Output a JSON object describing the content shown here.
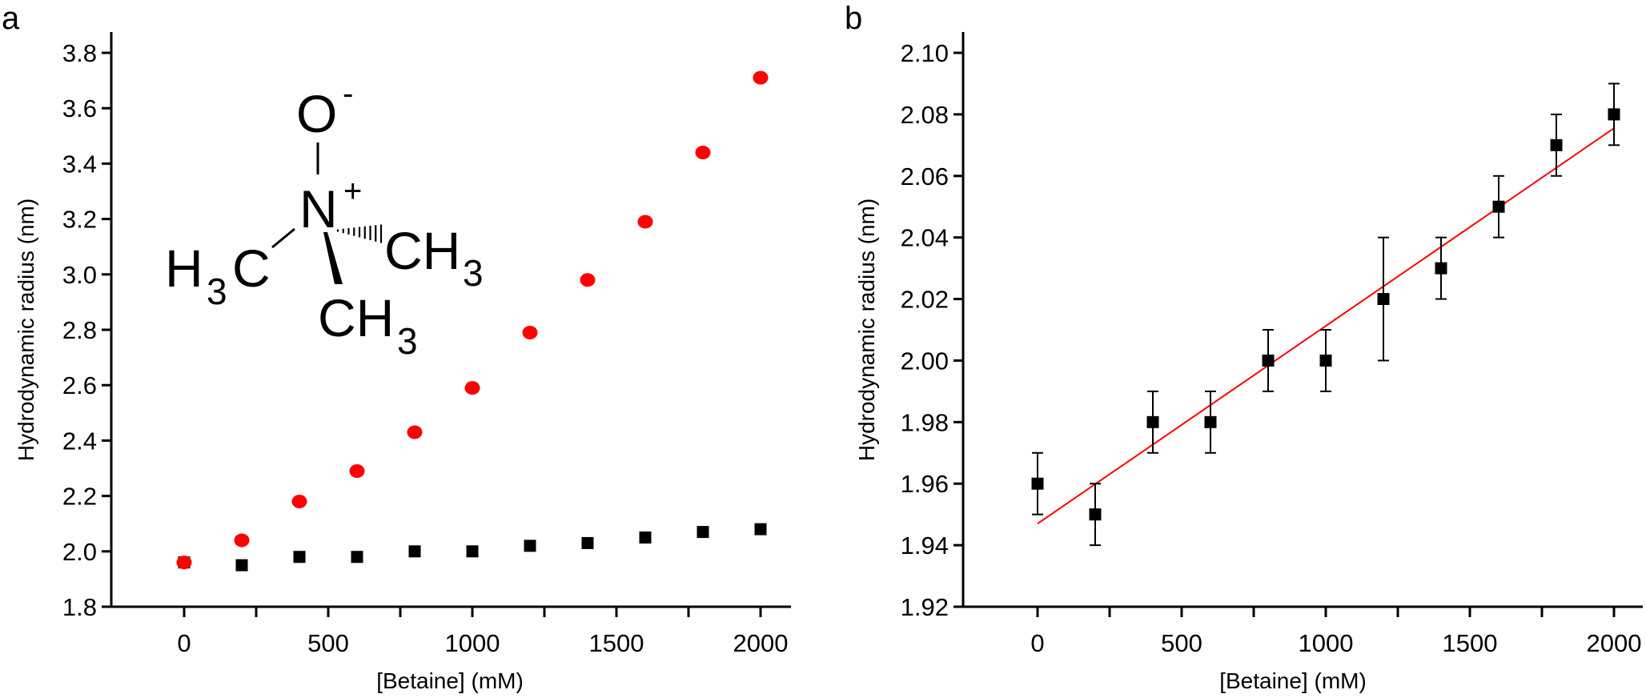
{
  "figure": {
    "panel_labels": [
      "a",
      "b"
    ],
    "molecule": {
      "name": "trimethylamine N-oxide",
      "oxygen": "O",
      "oxygen_charge": "-",
      "nitrogen": "N",
      "nitrogen_charge": "+",
      "left_group_H": "H",
      "left_group_sub": "3",
      "left_group_C": "C",
      "right_group": "CH",
      "right_group_sub": "3",
      "bottom_group": "CH",
      "bottom_group_sub": "3"
    }
  },
  "chart_data": [
    {
      "panel": "a",
      "type": "scatter",
      "title": "",
      "xlabel": "[Betaine] (mM)",
      "ylabel": "Hydrodynamic radius (nm)",
      "xlim": [
        -250,
        2080
      ],
      "ylim": [
        1.8,
        3.87
      ],
      "xticks": [
        0,
        500,
        1000,
        1500,
        2000
      ],
      "xminor_ticks": [
        250,
        750,
        1250,
        1750
      ],
      "yticks": [
        1.8,
        2.0,
        2.2,
        2.4,
        2.6,
        2.8,
        3.0,
        3.2,
        3.4,
        3.6,
        3.8
      ],
      "ytick_labels": [
        "1.8",
        "2.0",
        "2.2",
        "2.4",
        "2.6",
        "2.8",
        "3.0",
        "3.2",
        "3.4",
        "3.6",
        "3.8"
      ],
      "grid": false,
      "legend": null,
      "x": [
        0,
        200,
        400,
        600,
        800,
        1000,
        1200,
        1400,
        1600,
        1800,
        2000
      ],
      "series": [
        {
          "name": "red-circles",
          "marker": "circle",
          "color": "#ff0000",
          "values": [
            1.96,
            2.04,
            2.18,
            2.29,
            2.43,
            2.59,
            2.79,
            2.98,
            3.19,
            3.44,
            3.71
          ]
        },
        {
          "name": "black-squares",
          "marker": "square",
          "color": "#000000",
          "values": [
            1.96,
            1.95,
            1.98,
            1.98,
            2.0,
            2.0,
            2.02,
            2.03,
            2.05,
            2.07,
            2.08
          ]
        }
      ]
    },
    {
      "panel": "b",
      "type": "scatter",
      "title": "",
      "xlabel": "[Betaine] (mM)",
      "ylabel": "Hydrodynamic radius (nm)",
      "xlim": [
        -250,
        2080
      ],
      "ylim": [
        1.92,
        2.107
      ],
      "xticks": [
        0,
        500,
        1000,
        1500,
        2000
      ],
      "xminor_ticks": [
        250,
        750,
        1250,
        1750
      ],
      "yticks": [
        1.92,
        1.94,
        1.96,
        1.98,
        2.0,
        2.02,
        2.04,
        2.06,
        2.08,
        2.1
      ],
      "ytick_labels": [
        "1.92",
        "1.94",
        "1.96",
        "1.98",
        "2.00",
        "2.02",
        "2.04",
        "2.06",
        "2.08",
        "2.10"
      ],
      "grid": false,
      "legend": null,
      "x": [
        0,
        200,
        400,
        600,
        800,
        1000,
        1200,
        1400,
        1600,
        1800,
        2000
      ],
      "series": [
        {
          "name": "black-squares",
          "marker": "square",
          "color": "#000000",
          "values": [
            1.96,
            1.95,
            1.98,
            1.98,
            2.0,
            2.0,
            2.02,
            2.03,
            2.05,
            2.07,
            2.08
          ],
          "error_low": [
            1.95,
            1.94,
            1.97,
            1.97,
            1.99,
            1.99,
            2.0,
            2.02,
            2.04,
            2.06,
            2.07
          ],
          "error_high": [
            1.97,
            1.96,
            1.99,
            1.99,
            2.01,
            2.01,
            2.04,
            2.04,
            2.06,
            2.08,
            2.09
          ]
        }
      ],
      "fit_line": {
        "color": "#ff0000",
        "x": [
          0,
          2000
        ],
        "y": [
          1.947,
          2.0755
        ]
      }
    }
  ]
}
